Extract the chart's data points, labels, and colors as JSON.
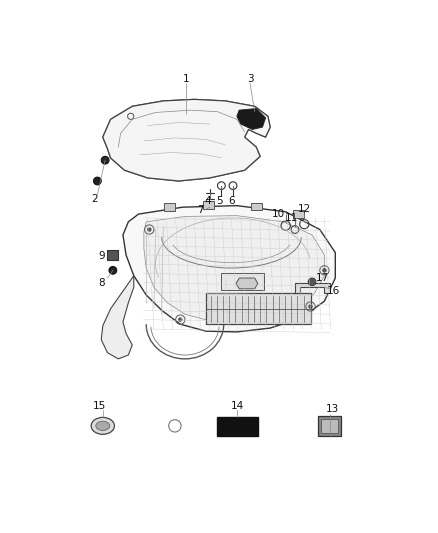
{
  "bg": "#ffffff",
  "lc": "#333333",
  "lc_thin": "#666666",
  "fw": 4.38,
  "fh": 5.33,
  "dpi": 100,
  "label_fs": 7.5,
  "label_color": "#111111"
}
